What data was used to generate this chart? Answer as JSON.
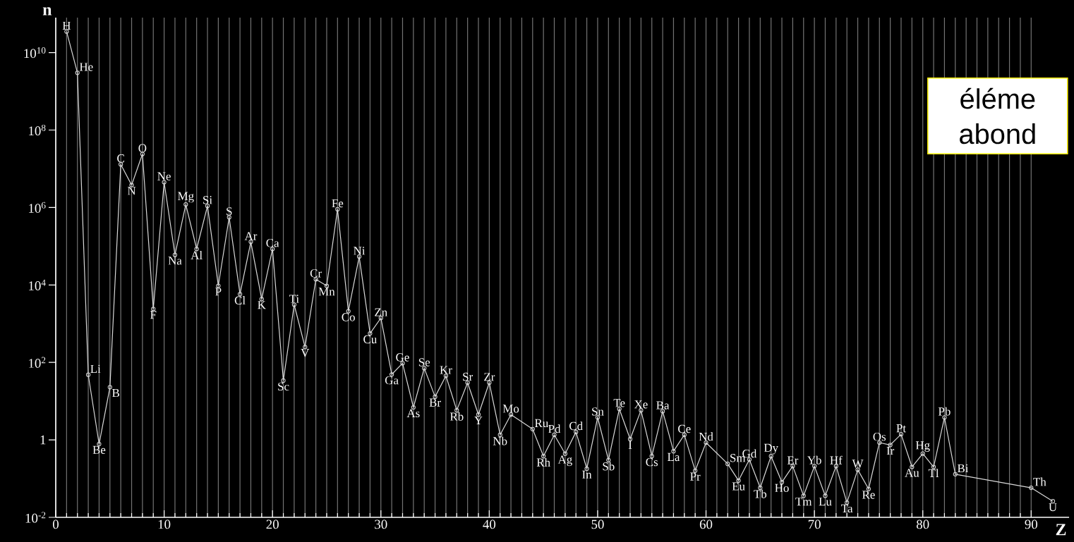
{
  "chart_data": {
    "type": "line",
    "xlabel": "Z",
    "ylabel": "n",
    "log": "y",
    "grid": "x",
    "marker": "circle",
    "line_style": "solid",
    "xlim": [
      0,
      93.5
    ],
    "ylim": [
      0.01,
      80000000000.0
    ],
    "xticks": [
      0,
      10,
      20,
      30,
      40,
      50,
      60,
      70,
      80,
      90
    ],
    "yticks": [
      {
        "value": 0.01,
        "label": "10$^{-2}$"
      },
      1,
      {
        "value": 100,
        "label": "10$^{2}$"
      },
      {
        "value": 10000,
        "label": "10$^{4}$"
      },
      {
        "value": 1000000,
        "label": "10$^{6}$"
      },
      {
        "value": 100000000,
        "label": "10$^{8}$"
      },
      {
        "value": 10000000000,
        "label": "10$^{10}$"
      }
    ],
    "x": [
      1,
      2,
      3,
      4,
      5,
      6,
      7,
      8,
      9,
      10,
      11,
      12,
      13,
      14,
      15,
      16,
      17,
      18,
      19,
      20,
      21,
      22,
      23,
      24,
      25,
      26,
      27,
      28,
      29,
      30,
      31,
      32,
      33,
      34,
      35,
      36,
      37,
      38,
      39,
      40,
      41,
      42,
      44,
      45,
      46,
      47,
      48,
      49,
      50,
      51,
      52,
      53,
      54,
      55,
      56,
      57,
      58,
      59,
      60,
      62,
      63,
      64,
      65,
      66,
      67,
      68,
      69,
      70,
      71,
      72,
      73,
      74,
      75,
      76,
      77,
      78,
      79,
      80,
      81,
      82,
      83,
      90,
      92
    ],
    "series": [
      {
        "color": "#d9d9d9",
        "values": [
          35000000000.0,
          3000000000.0,
          48,
          0.78,
          23,
          13000000.0,
          3800000.0,
          24000000.0,
          2400,
          4500000.0,
          60000.0,
          1200000.0,
          85000.0,
          1100000.0,
          9500,
          560000.0,
          5800,
          130000.0,
          4300,
          85000.0,
          34,
          3100,
          250,
          14000.0,
          9500,
          900000.0,
          2100,
          54000.0,
          560,
          1400,
          49,
          95,
          6.9,
          71,
          13,
          45,
          5.8,
          30,
          4.5,
          30,
          1.35,
          4.5,
          1.9,
          0.38,
          1.35,
          0.44,
          1.6,
          0.18,
          3.8,
          0.3,
          6.3,
          1.05,
          5.8,
          0.38,
          5.5,
          0.51,
          1.35,
          0.16,
          0.85,
          0.24,
          0.089,
          0.31,
          0.058,
          0.38,
          0.081,
          0.21,
          0.036,
          0.21,
          0.036,
          0.21,
          0.024,
          0.17,
          0.054,
          0.85,
          0.74,
          1.4,
          0.2,
          0.44,
          0.2,
          3.8,
          0.13,
          0.058,
          0.026
        ]
      }
    ],
    "annotations": [
      {
        "text": "H",
        "x": 1,
        "y": 35000000000.0
      },
      {
        "text": "He",
        "x": 2,
        "y": 3000000000.0
      },
      {
        "text": "Li",
        "x": 3,
        "y": 48
      },
      {
        "text": "Be",
        "x": 4,
        "y": 0.78
      },
      {
        "text": "B",
        "x": 5,
        "y": 23
      },
      {
        "text": "C",
        "x": 6,
        "y": 13000000.0
      },
      {
        "text": "N",
        "x": 7,
        "y": 3800000.0
      },
      {
        "text": "O",
        "x": 8,
        "y": 24000000.0
      },
      {
        "text": "F",
        "x": 9,
        "y": 2400
      },
      {
        "text": "Ne",
        "x": 10,
        "y": 4500000.0
      },
      {
        "text": "Na",
        "x": 11,
        "y": 60000.0
      },
      {
        "text": "Mg",
        "x": 12,
        "y": 1200000.0
      },
      {
        "text": "Al",
        "x": 13,
        "y": 85000.0
      },
      {
        "text": "Si",
        "x": 14,
        "y": 1100000.0
      },
      {
        "text": "P",
        "x": 15,
        "y": 9500
      },
      {
        "text": "S",
        "x": 16,
        "y": 560000.0
      },
      {
        "text": "Cl",
        "x": 17,
        "y": 5800
      },
      {
        "text": "Ar",
        "x": 18,
        "y": 130000.0
      },
      {
        "text": "K",
        "x": 19,
        "y": 4300
      },
      {
        "text": "Ca",
        "x": 20,
        "y": 85000.0
      },
      {
        "text": "Sc",
        "x": 21,
        "y": 34
      },
      {
        "text": "Ti",
        "x": 22,
        "y": 3100
      },
      {
        "text": "V",
        "x": 23,
        "y": 250
      },
      {
        "text": "Cr",
        "x": 24,
        "y": 14000.0
      },
      {
        "text": "Mn",
        "x": 25,
        "y": 9500
      },
      {
        "text": "Fe",
        "x": 26,
        "y": 900000.0
      },
      {
        "text": "Co",
        "x": 27,
        "y": 2100
      },
      {
        "text": "Ni",
        "x": 28,
        "y": 54000.0
      },
      {
        "text": "Cu",
        "x": 29,
        "y": 560
      },
      {
        "text": "Zn",
        "x": 30,
        "y": 1400
      },
      {
        "text": "Ga",
        "x": 31,
        "y": 49
      },
      {
        "text": "Ge",
        "x": 32,
        "y": 95
      },
      {
        "text": "As",
        "x": 33,
        "y": 6.9
      },
      {
        "text": "Se",
        "x": 34,
        "y": 71
      },
      {
        "text": "Br",
        "x": 35,
        "y": 13
      },
      {
        "text": "Kr",
        "x": 36,
        "y": 45
      },
      {
        "text": "Rb",
        "x": 37,
        "y": 5.8
      },
      {
        "text": "Sr",
        "x": 38,
        "y": 30
      },
      {
        "text": "Y",
        "x": 39,
        "y": 4.5
      },
      {
        "text": "Zr",
        "x": 40,
        "y": 30
      },
      {
        "text": "Nb",
        "x": 41,
        "y": 1.35
      },
      {
        "text": "Mo",
        "x": 42,
        "y": 4.5
      },
      {
        "text": "Ru",
        "x": 44,
        "y": 1.9
      },
      {
        "text": "Rh",
        "x": 45,
        "y": 0.38
      },
      {
        "text": "Pd",
        "x": 46,
        "y": 1.35
      },
      {
        "text": "Ag",
        "x": 47,
        "y": 0.44
      },
      {
        "text": "Cd",
        "x": 48,
        "y": 1.6
      },
      {
        "text": "In",
        "x": 49,
        "y": 0.18
      },
      {
        "text": "Sn",
        "x": 50,
        "y": 3.8
      },
      {
        "text": "Sb",
        "x": 51,
        "y": 0.3
      },
      {
        "text": "Te",
        "x": 52,
        "y": 6.3
      },
      {
        "text": "I",
        "x": 53,
        "y": 1.05
      },
      {
        "text": "Xe",
        "x": 54,
        "y": 5.8
      },
      {
        "text": "Cs",
        "x": 55,
        "y": 0.38
      },
      {
        "text": "Ba",
        "x": 56,
        "y": 5.5
      },
      {
        "text": "La",
        "x": 57,
        "y": 0.51
      },
      {
        "text": "Ce",
        "x": 58,
        "y": 1.35
      },
      {
        "text": "Pr",
        "x": 59,
        "y": 0.16
      },
      {
        "text": "Nd",
        "x": 60,
        "y": 0.85
      },
      {
        "text": "Sm",
        "x": 62,
        "y": 0.24
      },
      {
        "text": "Eu",
        "x": 63,
        "y": 0.089
      },
      {
        "text": "Gd",
        "x": 64,
        "y": 0.31
      },
      {
        "text": "Tb",
        "x": 65,
        "y": 0.058
      },
      {
        "text": "Dy",
        "x": 66,
        "y": 0.38
      },
      {
        "text": "Ho",
        "x": 67,
        "y": 0.081
      },
      {
        "text": "Er",
        "x": 68,
        "y": 0.21
      },
      {
        "text": "Tm",
        "x": 69,
        "y": 0.036
      },
      {
        "text": "Yb",
        "x": 70,
        "y": 0.21
      },
      {
        "text": "Lu",
        "x": 71,
        "y": 0.036
      },
      {
        "text": "Hf",
        "x": 72,
        "y": 0.21
      },
      {
        "text": "Ta",
        "x": 73,
        "y": 0.024
      },
      {
        "text": "W",
        "x": 74,
        "y": 0.17
      },
      {
        "text": "Re",
        "x": 75,
        "y": 0.054
      },
      {
        "text": "Os",
        "x": 76,
        "y": 0.85
      },
      {
        "text": "Ir",
        "x": 77,
        "y": 0.74
      },
      {
        "text": "Pt",
        "x": 78,
        "y": 1.4
      },
      {
        "text": "Au",
        "x": 79,
        "y": 0.2
      },
      {
        "text": "Hg",
        "x": 80,
        "y": 0.44
      },
      {
        "text": "Tl",
        "x": 81,
        "y": 0.2
      },
      {
        "text": "Pb",
        "x": 82,
        "y": 3.8
      },
      {
        "text": "Bi",
        "x": 83,
        "y": 0.13
      },
      {
        "text": "Th",
        "x": 90,
        "y": 0.058
      },
      {
        "text": "U",
        "x": 92,
        "y": 0.026
      },
      "éléme abond"
    ]
  }
}
